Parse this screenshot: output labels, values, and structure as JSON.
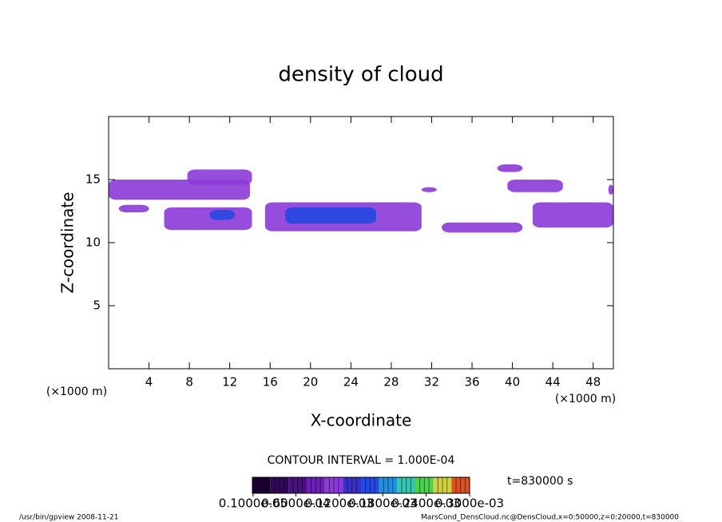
{
  "chart_data": {
    "type": "contour",
    "title": "density of cloud",
    "x_label": "X-coordinate",
    "y_label": "Z-coordinate",
    "x_unit": "(×1000 m)",
    "y_unit": "(×1000 m)",
    "xlim": [
      0,
      50
    ],
    "ylim": [
      0,
      20
    ],
    "xticks": [
      4,
      8,
      12,
      16,
      20,
      24,
      28,
      32,
      36,
      40,
      44,
      48
    ],
    "yticks": [
      5,
      10,
      15
    ],
    "patches": [
      {
        "x": [
          0,
          14
        ],
        "z": [
          13.4,
          15.0
        ],
        "value": 0.0001
      },
      {
        "x": [
          7.8,
          14.2
        ],
        "z": [
          14.6,
          15.8
        ],
        "value": 0.0001
      },
      {
        "x": [
          1,
          4
        ],
        "z": [
          12.4,
          13.0
        ],
        "value": 0.0001
      },
      {
        "x": [
          5.5,
          14.2
        ],
        "z": [
          11.0,
          12.8
        ],
        "value": 0.0001
      },
      {
        "x": [
          15.5,
          31
        ],
        "z": [
          10.9,
          13.2
        ],
        "value": 0.0001
      },
      {
        "x": [
          17.5,
          26.5
        ],
        "z": [
          11.5,
          12.8
        ],
        "value": 0.00016
      },
      {
        "x": [
          10,
          12.5
        ],
        "z": [
          11.8,
          12.6
        ],
        "value": 0.00016
      },
      {
        "x": [
          33,
          41
        ],
        "z": [
          10.8,
          11.6
        ],
        "value": 0.0001
      },
      {
        "x": [
          38.5,
          41
        ],
        "z": [
          15.6,
          16.2
        ],
        "value": 0.0001
      },
      {
        "x": [
          39.5,
          45
        ],
        "z": [
          14.0,
          15.0
        ],
        "value": 0.0001
      },
      {
        "x": [
          42,
          50
        ],
        "z": [
          11.2,
          13.2
        ],
        "value": 0.0001
      },
      {
        "x": [
          49.5,
          50
        ],
        "z": [
          13.8,
          14.6
        ],
        "value": 0.0001
      },
      {
        "x": [
          31,
          32.5
        ],
        "z": [
          14.0,
          14.4
        ],
        "value": 0.0001
      }
    ],
    "contour_interval": "CONTOUR INTERVAL = 1.000E-04",
    "time_label": "t=830000 s",
    "colorbar": {
      "lim": [
        0,
        0.0003
      ],
      "colors": [
        "#1a0030",
        "#300858",
        "#481080",
        "#6a20b0",
        "#8c3ad8",
        "#3a30d0",
        "#2448e0",
        "#2090e0",
        "#30c8b0",
        "#50d050",
        "#d0d040",
        "#e05020"
      ],
      "ticks": [
        {
          "value": 1e-06,
          "label": "0.1000e-05"
        },
        {
          "value": 6e-05,
          "label": "0.6000e-04"
        },
        {
          "value": 0.00012,
          "label": "0.1200e-03"
        },
        {
          "value": 0.00018,
          "label": "0.1800e-03"
        },
        {
          "value": 0.00024,
          "label": "0.2400e-03"
        },
        {
          "value": 0.0003,
          "label": "0.3000e-03"
        }
      ]
    },
    "footer_left": "/usr/bin/gpview  2008-11-21",
    "footer_right": "MarsCond_DensCloud.nc@DensCloud,x=0:50000,z=0:20000,t=830000"
  }
}
